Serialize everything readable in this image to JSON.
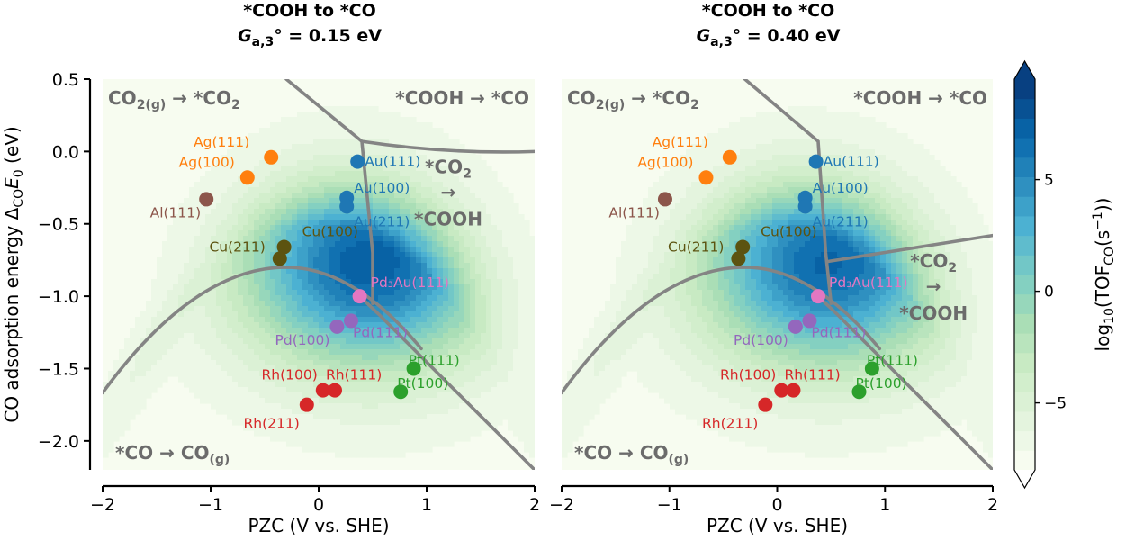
{
  "chart_data": [
    {
      "type": "heatmap",
      "title_line1": "*COOH to *CO",
      "title_param": "G",
      "title_param_sub": "a,3",
      "title_value": "° = 0.15 eV",
      "xlabel": "PZC (V vs. SHE)",
      "ylabel_prefix": "CO adsorption energy Δ",
      "ylabel_sub": "CO",
      "ylabel_var": "E",
      "ylabel_var_sub": "0",
      "ylabel_suffix": " (eV)",
      "xlim": [
        -2,
        2
      ],
      "ylim": [
        -2.2,
        0.5
      ],
      "xticks": [
        "−2",
        "−1",
        "0",
        "1",
        "2"
      ],
      "yticks": [
        "0.5",
        "0.0",
        "−0.5",
        "−1.0",
        "−1.5",
        "−2.0"
      ],
      "regions": [
        {
          "name": "co2-to-co2ads",
          "text": "CO",
          "sub": "2(g)",
          "rest": " → *CO",
          "sub2": "2"
        },
        {
          "name": "cooh-to-co",
          "text": "*COOH → *CO"
        },
        {
          "name": "co2-to-cooh",
          "line1": "*CO",
          "line1_sub": "2",
          "line2": "→",
          "line3": "*COOH"
        },
        {
          "name": "co-desorption",
          "text": "*CO → CO",
          "sub": "(g)"
        }
      ],
      "points": [
        {
          "label": "Ag(111)",
          "x": -0.44,
          "y": -0.04,
          "color": "#ff7f0e"
        },
        {
          "label": "Ag(100)",
          "x": -0.66,
          "y": -0.18,
          "color": "#ff7f0e"
        },
        {
          "label": "Al(111)",
          "x": -1.04,
          "y": -0.33,
          "color": "#8c564b"
        },
        {
          "label": "Au(111)",
          "x": 0.36,
          "y": -0.07,
          "color": "#1f77b4"
        },
        {
          "label": "Au(100)",
          "x": 0.26,
          "y": -0.32,
          "color": "#1f77b4"
        },
        {
          "label": "Au(211)",
          "x": 0.26,
          "y": -0.38,
          "color": "#1f77b4"
        },
        {
          "label": "Cu(100)",
          "x": -0.32,
          "y": -0.66,
          "color": "#5c5310"
        },
        {
          "label": "Cu(211)",
          "x": -0.36,
          "y": -0.74,
          "color": "#5c5310"
        },
        {
          "label": "Pd₃Au(111)",
          "x": 0.38,
          "y": -1.0,
          "color": "#e377c2"
        },
        {
          "label": "Pd(100)",
          "x": 0.17,
          "y": -1.21,
          "color": "#9467bd"
        },
        {
          "label": "Pd(111)",
          "x": 0.3,
          "y": -1.17,
          "color": "#9467bd"
        },
        {
          "label": "Rh(100)",
          "x": 0.04,
          "y": -1.65,
          "color": "#d62728"
        },
        {
          "label": "Rh(111)",
          "x": 0.15,
          "y": -1.65,
          "color": "#d62728"
        },
        {
          "label": "Rh(211)",
          "x": -0.11,
          "y": -1.75,
          "color": "#d62728"
        },
        {
          "label": "Pt(111)",
          "x": 0.88,
          "y": -1.5,
          "color": "#2ca02c"
        },
        {
          "label": "Pt(100)",
          "x": 0.76,
          "y": -1.66,
          "color": "#2ca02c"
        }
      ]
    },
    {
      "type": "heatmap",
      "title_line1": "*COOH to *CO",
      "title_param": "G",
      "title_param_sub": "a,3",
      "title_value": "° = 0.40 eV",
      "xlabel": "PZC (V vs. SHE)",
      "xlim": [
        -2,
        2
      ],
      "ylim": [
        -2.2,
        0.5
      ],
      "xticks": [
        "−2",
        "−1",
        "0",
        "1",
        "2"
      ],
      "regions": [
        {
          "name": "co2-to-co2ads",
          "text": "CO",
          "sub": "2(g)",
          "rest": " → *CO",
          "sub2": "2"
        },
        {
          "name": "cooh-to-co",
          "text": "*COOH → *CO"
        },
        {
          "name": "co2-to-cooh",
          "line1": "*CO",
          "line1_sub": "2",
          "line2": "→",
          "line3": "*COOH"
        },
        {
          "name": "co-desorption",
          "text": "*CO → CO",
          "sub": "(g)"
        }
      ],
      "points": [
        {
          "label": "Ag(111)",
          "x": -0.44,
          "y": -0.04,
          "color": "#ff7f0e"
        },
        {
          "label": "Ag(100)",
          "x": -0.66,
          "y": -0.18,
          "color": "#ff7f0e"
        },
        {
          "label": "Al(111)",
          "x": -1.04,
          "y": -0.33,
          "color": "#8c564b"
        },
        {
          "label": "Au(111)",
          "x": 0.36,
          "y": -0.07,
          "color": "#1f77b4"
        },
        {
          "label": "Au(100)",
          "x": 0.26,
          "y": -0.32,
          "color": "#1f77b4"
        },
        {
          "label": "Au(211)",
          "x": 0.26,
          "y": -0.38,
          "color": "#1f77b4"
        },
        {
          "label": "Cu(100)",
          "x": -0.32,
          "y": -0.66,
          "color": "#5c5310"
        },
        {
          "label": "Cu(211)",
          "x": -0.36,
          "y": -0.74,
          "color": "#5c5310"
        },
        {
          "label": "Pd₃Au(111)",
          "x": 0.38,
          "y": -1.0,
          "color": "#e377c2"
        },
        {
          "label": "Pd(100)",
          "x": 0.17,
          "y": -1.21,
          "color": "#9467bd"
        },
        {
          "label": "Pd(111)",
          "x": 0.3,
          "y": -1.17,
          "color": "#9467bd"
        },
        {
          "label": "Rh(100)",
          "x": 0.04,
          "y": -1.65,
          "color": "#d62728"
        },
        {
          "label": "Rh(111)",
          "x": 0.15,
          "y": -1.65,
          "color": "#d62728"
        },
        {
          "label": "Rh(211)",
          "x": -0.11,
          "y": -1.75,
          "color": "#d62728"
        },
        {
          "label": "Pt(111)",
          "x": 0.88,
          "y": -1.5,
          "color": "#2ca02c"
        },
        {
          "label": "Pt(100)",
          "x": 0.76,
          "y": -1.66,
          "color": "#2ca02c"
        }
      ]
    }
  ],
  "colorbar": {
    "label_prefix": "log",
    "label_sub1": "10",
    "label_mid": "(TOF",
    "label_sub2": "CO",
    "label_end": "(s",
    "label_sup": "−1",
    "label_close": "))",
    "range": [
      -8,
      9.5
    ],
    "ticks": [
      {
        "value": 5,
        "label": "5"
      },
      {
        "value": 0,
        "label": "0"
      },
      {
        "value": -5,
        "label": "−5"
      }
    ],
    "colors": [
      "#f7fcf0",
      "#e0f3db",
      "#ccebc5",
      "#a8ddb5",
      "#7bccc4",
      "#4eb3d3",
      "#2b8cbe",
      "#0868ac",
      "#084081"
    ]
  }
}
